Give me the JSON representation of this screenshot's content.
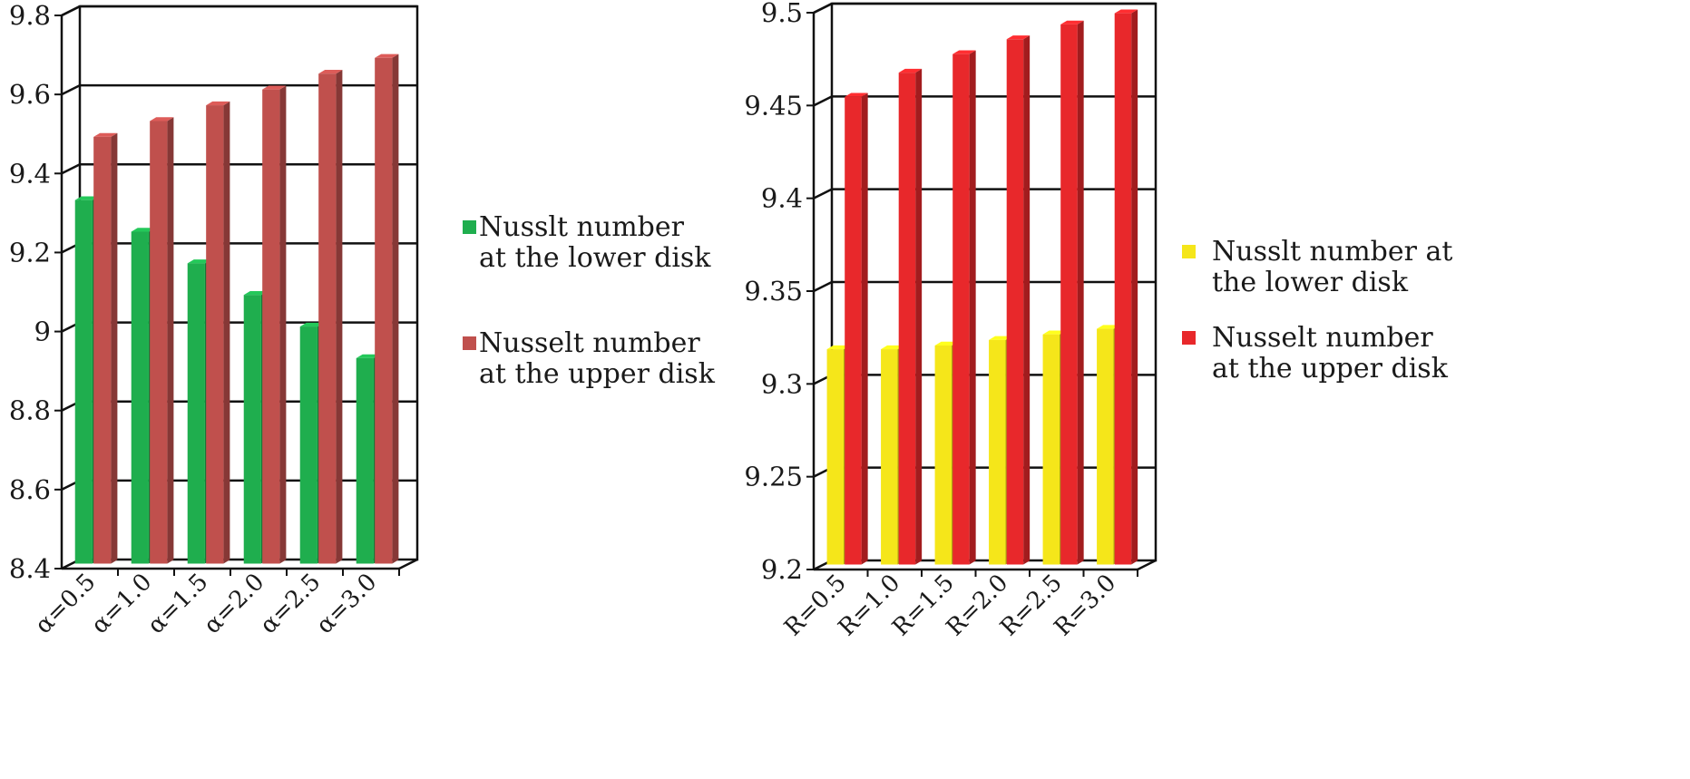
{
  "chart_data": [
    {
      "type": "bar",
      "title": "",
      "xlabel": "",
      "ylabel": "",
      "ylim": [
        8.4,
        9.8
      ],
      "yticks": [
        "8.4",
        "8.6",
        "8.8",
        "9",
        "9.2",
        "9.4",
        "9.6",
        "9.8"
      ],
      "categories": [
        "α=0.5",
        "α=1.0",
        "α=1.5",
        "α=2.0",
        "α=2.5",
        "α=3.0"
      ],
      "legend_position": "right",
      "series": [
        {
          "name": "Nusslt number at the lower disk",
          "legend_lines": [
            "Nusslt number",
            "at the lower disk"
          ],
          "color": "#1fae4e",
          "values": [
            9.32,
            9.24,
            9.16,
            9.08,
            9.0,
            8.92
          ]
        },
        {
          "name": "Nusselt number at the upper disk",
          "legend_lines": [
            "Nusselt number",
            "at the upper disk"
          ],
          "color": "#c0504d",
          "values": [
            9.48,
            9.52,
            9.56,
            9.6,
            9.64,
            9.68
          ]
        }
      ]
    },
    {
      "type": "bar",
      "title": "",
      "xlabel": "",
      "ylabel": "",
      "ylim": [
        9.2,
        9.5
      ],
      "yticks": [
        "9.2",
        "9.25",
        "9.3",
        "9.35",
        "9.4",
        "9.45",
        "9.5"
      ],
      "categories": [
        "R=0.5",
        "R=1.0",
        "R=1.5",
        "R=2.0",
        "R=2.5",
        "R=3.0"
      ],
      "legend_position": "right",
      "series": [
        {
          "name": "Nusslt number at the lower disk",
          "legend_lines": [
            "Nusslt number at",
            "the lower disk"
          ],
          "color": "#f5e61a",
          "values": [
            9.316,
            9.316,
            9.318,
            9.321,
            9.324,
            9.327
          ]
        },
        {
          "name": "Nusselt number at the upper disk",
          "legend_lines": [
            "Nusselt number",
            "at the upper disk"
          ],
          "color": "#e8282b",
          "values": [
            9.452,
            9.465,
            9.475,
            9.483,
            9.491,
            9.497
          ]
        }
      ]
    }
  ]
}
